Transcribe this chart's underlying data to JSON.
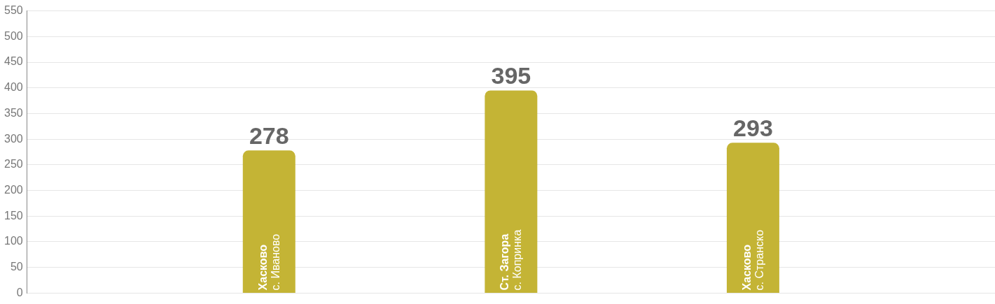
{
  "chart_data": {
    "type": "bar",
    "categories": [
      null,
      "Хасково\nс. Иваново",
      "Ст. Загора\nс. Копринка",
      "Хасково\nс. Странско",
      null
    ],
    "values": [
      null,
      278,
      395,
      293,
      null
    ],
    "color": "#c4b435",
    "ylim": [
      0,
      550
    ],
    "yticks": [
      0,
      50,
      100,
      150,
      200,
      250,
      300,
      350,
      400,
      450,
      500,
      550
    ],
    "grid": "y",
    "data_labels": true,
    "tick_labels": "y",
    "legend": false
  }
}
